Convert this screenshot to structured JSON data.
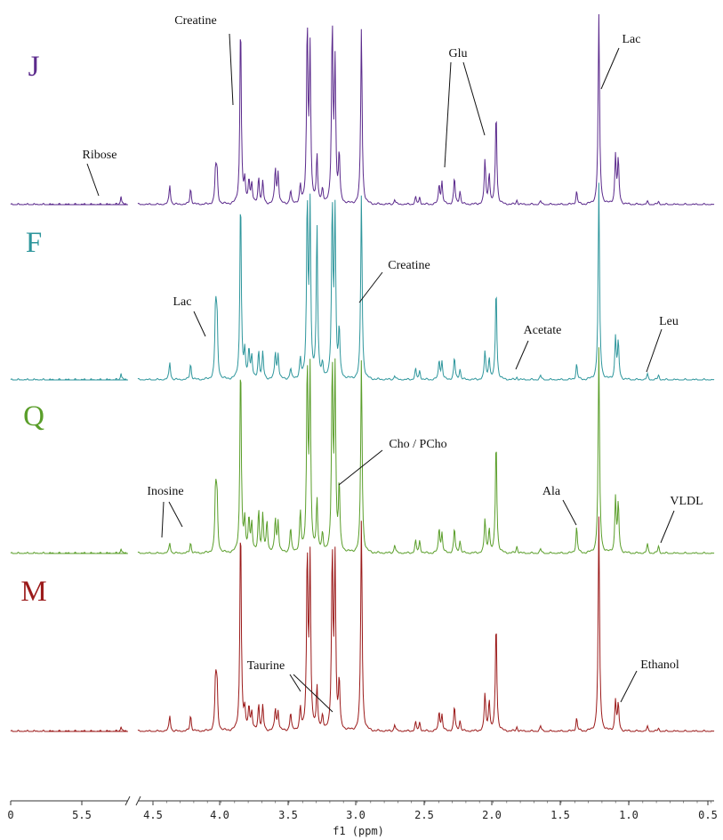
{
  "chart_data": {
    "type": "line",
    "title": "",
    "xlabel": "f1 (ppm)",
    "ylabel": "",
    "x_reversed": true,
    "axis_break_between": [
      5.3,
      4.65
    ],
    "xlim_segments": [
      [
        6.3,
        5.3
      ],
      [
        4.65,
        0.5
      ]
    ],
    "tick_labels": [
      "0",
      "5.5",
      "4.5",
      "4.0",
      "3.5",
      "3.0",
      "2.5",
      "2.0",
      "1.5",
      "1.0",
      "0.5"
    ],
    "series": [
      {
        "name": "J",
        "color": "#5b2a8c",
        "peaks": [
          [
            5.36,
            10
          ],
          [
            5.14,
            7
          ],
          [
            4.72,
            5
          ],
          [
            4.42,
            22
          ],
          [
            4.27,
            18
          ],
          [
            4.09,
            38
          ],
          [
            4.08,
            35
          ],
          [
            3.91,
            210
          ],
          [
            3.88,
            25
          ],
          [
            3.85,
            28
          ],
          [
            3.83,
            22
          ],
          [
            3.78,
            30
          ],
          [
            3.75,
            25
          ],
          [
            3.66,
            40
          ],
          [
            3.64,
            35
          ],
          [
            3.55,
            15
          ],
          [
            3.48,
            20
          ],
          [
            3.43,
            200
          ],
          [
            3.41,
            170
          ],
          [
            3.36,
            55
          ],
          [
            3.32,
            15
          ],
          [
            3.25,
            200
          ],
          [
            3.23,
            155
          ],
          [
            3.2,
            55
          ],
          [
            3.04,
            200
          ],
          [
            2.8,
            6
          ],
          [
            2.65,
            8
          ],
          [
            2.62,
            8
          ],
          [
            2.48,
            22
          ],
          [
            2.46,
            25
          ],
          [
            2.37,
            30
          ],
          [
            2.33,
            15
          ],
          [
            2.15,
            50
          ],
          [
            2.12,
            35
          ],
          [
            2.07,
            105
          ],
          [
            1.92,
            5
          ],
          [
            1.75,
            4
          ],
          [
            1.49,
            15
          ],
          [
            1.33,
            220
          ],
          [
            1.21,
            55
          ],
          [
            1.19,
            50
          ],
          [
            0.98,
            3
          ],
          [
            0.9,
            3
          ]
        ]
      },
      {
        "name": "F",
        "color": "#2e969c",
        "peaks": [
          [
            5.36,
            8
          ],
          [
            5.14,
            10
          ],
          [
            4.72,
            12
          ],
          [
            4.42,
            20
          ],
          [
            4.27,
            18
          ],
          [
            4.09,
            80
          ],
          [
            4.08,
            65
          ],
          [
            3.91,
            210
          ],
          [
            3.88,
            30
          ],
          [
            3.85,
            35
          ],
          [
            3.83,
            25
          ],
          [
            3.78,
            32
          ],
          [
            3.75,
            30
          ],
          [
            3.66,
            30
          ],
          [
            3.64,
            28
          ],
          [
            3.55,
            12
          ],
          [
            3.48,
            22
          ],
          [
            3.43,
            200
          ],
          [
            3.41,
            190
          ],
          [
            3.36,
            175
          ],
          [
            3.32,
            15
          ],
          [
            3.25,
            195
          ],
          [
            3.23,
            185
          ],
          [
            3.2,
            55
          ],
          [
            3.04,
            210
          ],
          [
            2.8,
            5
          ],
          [
            2.65,
            12
          ],
          [
            2.62,
            10
          ],
          [
            2.48,
            22
          ],
          [
            2.46,
            20
          ],
          [
            2.37,
            25
          ],
          [
            2.33,
            12
          ],
          [
            2.15,
            32
          ],
          [
            2.12,
            25
          ],
          [
            2.07,
            105
          ],
          [
            1.92,
            3
          ],
          [
            1.75,
            5
          ],
          [
            1.49,
            18
          ],
          [
            1.33,
            220
          ],
          [
            1.21,
            48
          ],
          [
            1.19,
            42
          ],
          [
            0.98,
            6
          ],
          [
            0.9,
            5
          ]
        ]
      },
      {
        "name": "Q",
        "color": "#5a9e2a",
        "peaks": [
          [
            5.36,
            6
          ],
          [
            5.14,
            10
          ],
          [
            4.72,
            14
          ],
          [
            4.42,
            12
          ],
          [
            4.27,
            12
          ],
          [
            4.09,
            70
          ],
          [
            4.08,
            60
          ],
          [
            3.91,
            220
          ],
          [
            3.88,
            35
          ],
          [
            3.85,
            40
          ],
          [
            3.83,
            32
          ],
          [
            3.78,
            48
          ],
          [
            3.75,
            42
          ],
          [
            3.72,
            36
          ],
          [
            3.66,
            38
          ],
          [
            3.64,
            35
          ],
          [
            3.55,
            28
          ],
          [
            3.48,
            45
          ],
          [
            3.43,
            210
          ],
          [
            3.41,
            200
          ],
          [
            3.36,
            60
          ],
          [
            3.32,
            20
          ],
          [
            3.25,
            210
          ],
          [
            3.23,
            200
          ],
          [
            3.2,
            75
          ],
          [
            3.04,
            220
          ],
          [
            2.8,
            10
          ],
          [
            2.65,
            14
          ],
          [
            2.62,
            14
          ],
          [
            2.48,
            28
          ],
          [
            2.46,
            22
          ],
          [
            2.37,
            28
          ],
          [
            2.33,
            14
          ],
          [
            2.15,
            38
          ],
          [
            2.12,
            28
          ],
          [
            2.07,
            130
          ],
          [
            1.92,
            8
          ],
          [
            1.75,
            5
          ],
          [
            1.49,
            30
          ],
          [
            1.33,
            230
          ],
          [
            1.21,
            62
          ],
          [
            1.19,
            55
          ],
          [
            0.98,
            10
          ],
          [
            0.9,
            8
          ]
        ]
      },
      {
        "name": "M",
        "color": "#9b1a1a",
        "peaks": [
          [
            5.36,
            6
          ],
          [
            5.14,
            8
          ],
          [
            4.72,
            10
          ],
          [
            4.42,
            18
          ],
          [
            4.27,
            18
          ],
          [
            4.09,
            58
          ],
          [
            4.08,
            50
          ],
          [
            3.91,
            240
          ],
          [
            3.88,
            22
          ],
          [
            3.85,
            28
          ],
          [
            3.83,
            20
          ],
          [
            3.78,
            30
          ],
          [
            3.75,
            28
          ],
          [
            3.66,
            25
          ],
          [
            3.64,
            22
          ],
          [
            3.55,
            20
          ],
          [
            3.48,
            25
          ],
          [
            3.43,
            200
          ],
          [
            3.41,
            190
          ],
          [
            3.36,
            50
          ],
          [
            3.32,
            15
          ],
          [
            3.25,
            200
          ],
          [
            3.23,
            190
          ],
          [
            3.2,
            55
          ],
          [
            3.04,
            240
          ],
          [
            2.8,
            8
          ],
          [
            2.65,
            10
          ],
          [
            2.62,
            10
          ],
          [
            2.48,
            22
          ],
          [
            2.46,
            18
          ],
          [
            2.37,
            28
          ],
          [
            2.33,
            12
          ],
          [
            2.15,
            42
          ],
          [
            2.12,
            35
          ],
          [
            2.07,
            125
          ],
          [
            1.92,
            5
          ],
          [
            1.75,
            6
          ],
          [
            1.49,
            15
          ],
          [
            1.33,
            240
          ],
          [
            1.21,
            35
          ],
          [
            1.19,
            30
          ],
          [
            0.98,
            5
          ],
          [
            0.9,
            3
          ]
        ]
      }
    ],
    "annotations": [
      {
        "series": "J",
        "text": "Creatine",
        "ppm": 3.91
      },
      {
        "series": "J",
        "text": "Ribose",
        "ppm": 5.36
      },
      {
        "series": "J",
        "text": "Glu",
        "ppm": 2.37
      },
      {
        "series": "J",
        "text": "Lac",
        "ppm": 1.33
      },
      {
        "series": "F",
        "text": "Lac",
        "ppm": 4.09
      },
      {
        "series": "F",
        "text": "Creatine",
        "ppm": 3.04
      },
      {
        "series": "F",
        "text": "Acetate",
        "ppm": 1.92
      },
      {
        "series": "F",
        "text": "Leu",
        "ppm": 0.95
      },
      {
        "series": "Q",
        "text": "Cho / PCho",
        "ppm": 3.2
      },
      {
        "series": "Q",
        "text": "Inosine",
        "ppm": 4.3
      },
      {
        "series": "Q",
        "text": "Ala",
        "ppm": 1.49
      },
      {
        "series": "Q",
        "text": "VLDL",
        "ppm": 0.87
      },
      {
        "series": "M",
        "text": "Taurine",
        "ppm": 3.3
      },
      {
        "series": "M",
        "text": "Ethanol",
        "ppm": 1.2
      }
    ]
  }
}
